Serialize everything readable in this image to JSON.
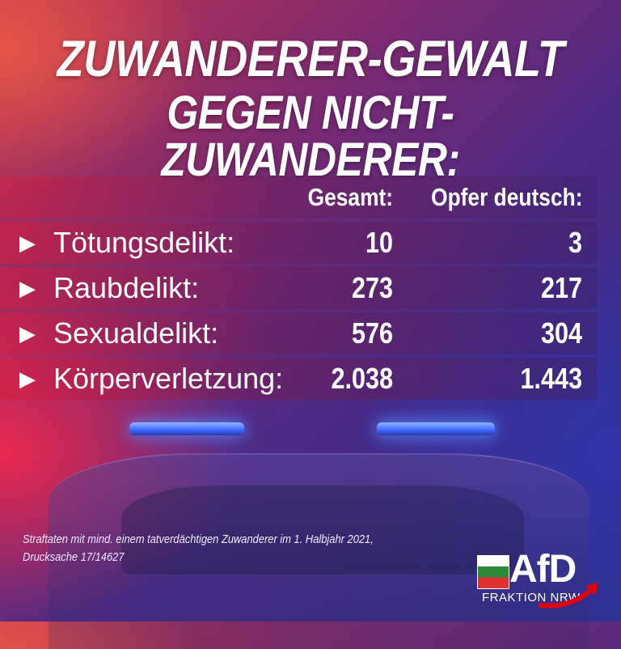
{
  "headline": {
    "line1": "ZUWANDERER-GEWALT",
    "line2": "GEGEN NICHT-ZUWANDERER:"
  },
  "table": {
    "headers": {
      "gesamt": "Gesamt:",
      "opfer": "Opfer deutsch:"
    },
    "rows": [
      {
        "label": "Tötungsdelikt:",
        "gesamt": "10",
        "opfer": "3"
      },
      {
        "label": "Raubdelikt:",
        "gesamt": "273",
        "opfer": "217"
      },
      {
        "label": "Sexualdelikt:",
        "gesamt": "576",
        "opfer": "304"
      },
      {
        "label": "Körperverletzung:",
        "gesamt": "2.038",
        "opfer": "1.443"
      }
    ],
    "bullet_icon": "triangle-right-icon"
  },
  "source": {
    "line1": "Straftaten mit mind. einem tatverdächtigen Zuwanderer im 1. Halbjahr 2021,",
    "line2": "Drucksache 17/14627"
  },
  "logo": {
    "name": "AfD",
    "subtitle": "FRAKTION NRW",
    "accent_color": "#e3000f",
    "crest_icon": "nrw-crest-icon"
  },
  "colors": {
    "text": "#ffffff",
    "lightbar": "#3b66ff"
  }
}
